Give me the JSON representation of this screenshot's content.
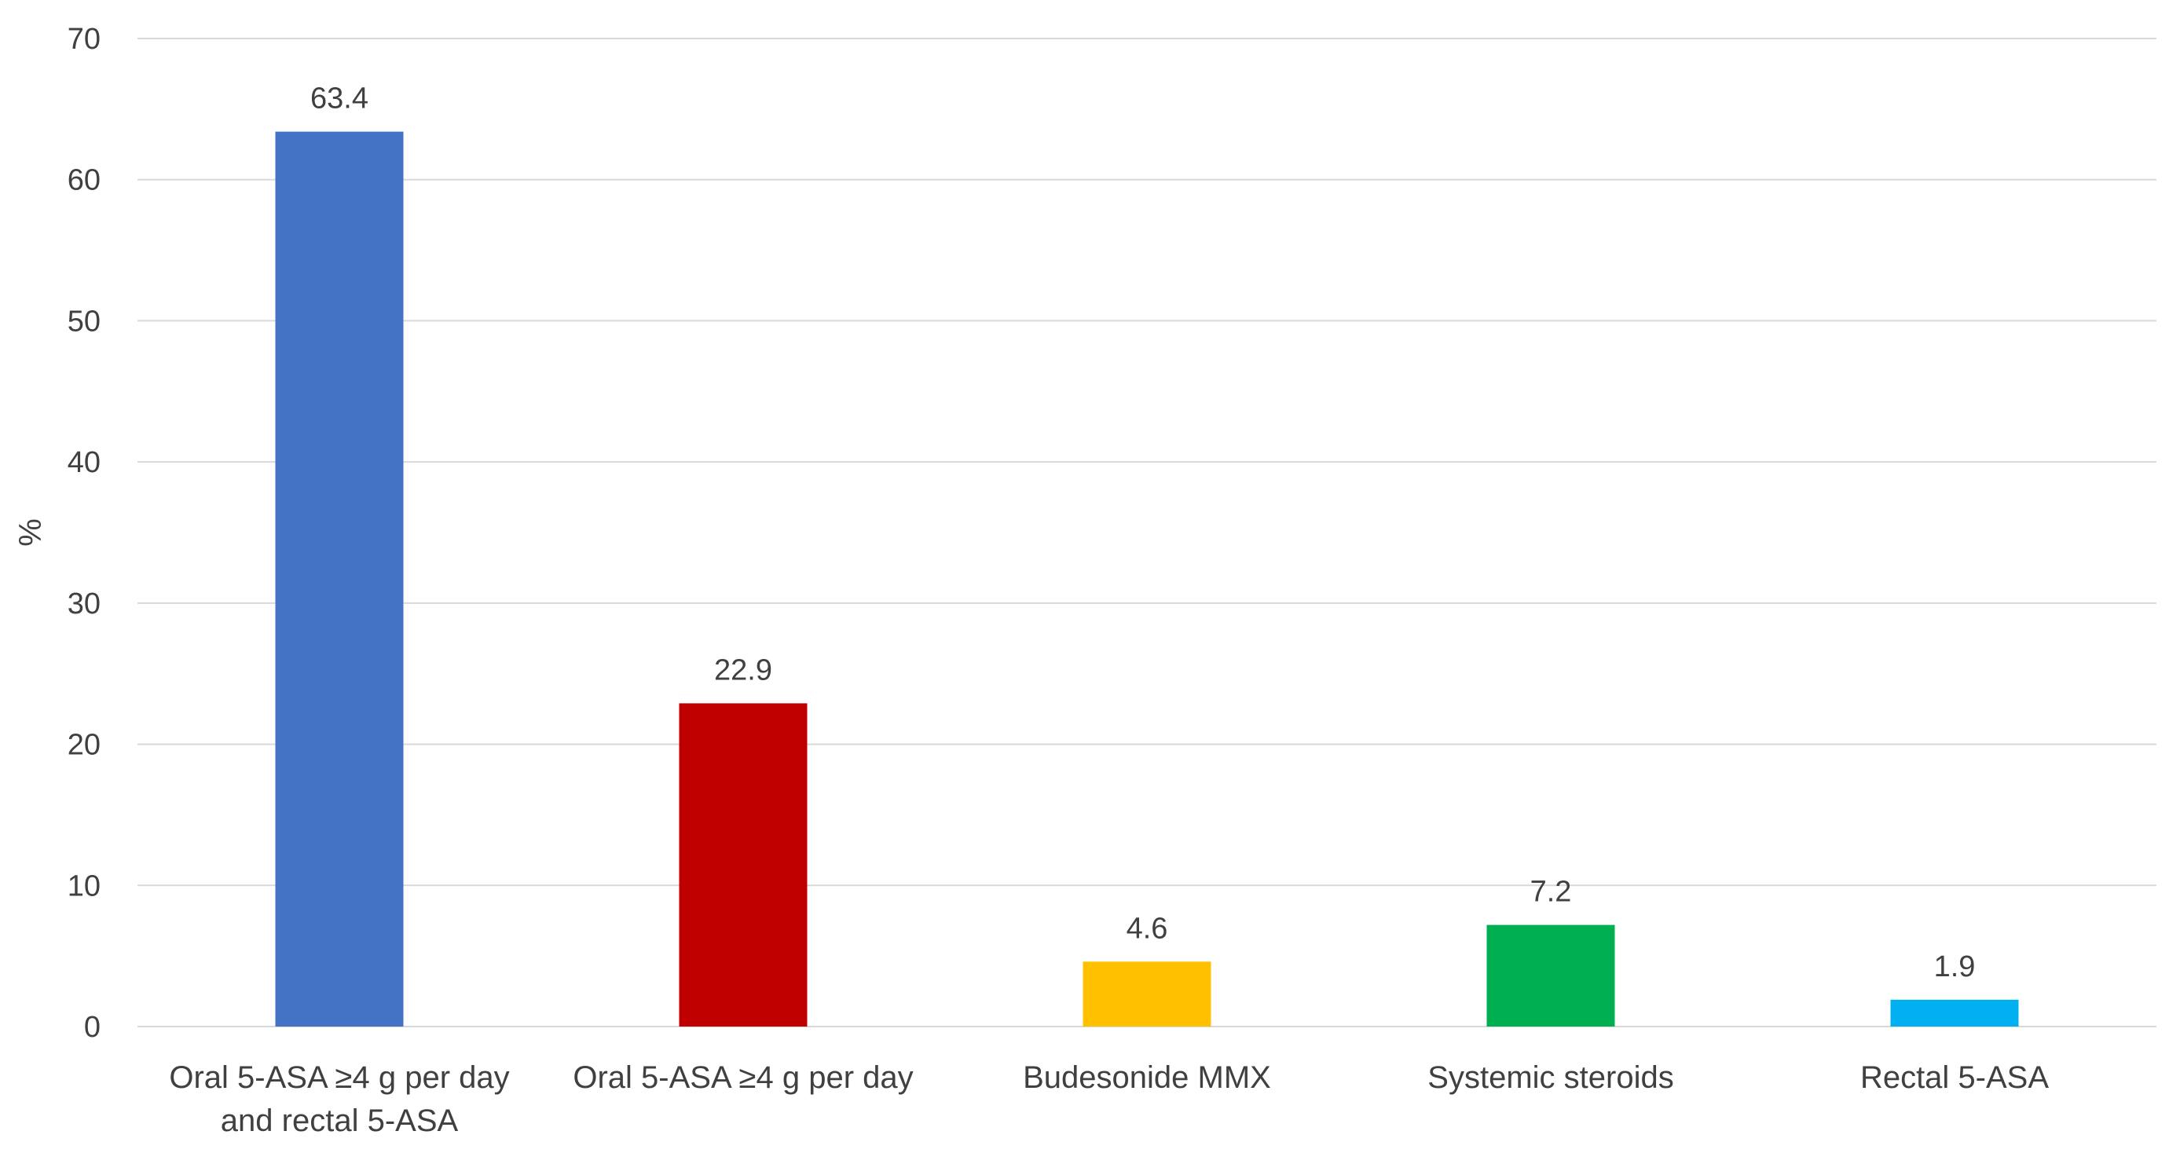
{
  "chart_data": {
    "type": "bar",
    "title": "",
    "xlabel": "",
    "ylabel": "%",
    "ylim": [
      0,
      70
    ],
    "yticks": [
      0,
      10,
      20,
      30,
      40,
      50,
      60,
      70
    ],
    "grid": true,
    "legend": "none",
    "categories": [
      [
        "Oral 5-ASA ≥4 g per day",
        "and rectal 5-ASA"
      ],
      [
        "Oral 5-ASA ≥4 g per day"
      ],
      [
        "Budesonide MMX"
      ],
      [
        "Systemic steroids"
      ],
      [
        "Rectal 5-ASA"
      ]
    ],
    "values": [
      63.4,
      22.9,
      4.6,
      7.2,
      1.9
    ],
    "value_labels": [
      "63.4",
      "22.9",
      "4.6",
      "7.2",
      "1.9"
    ],
    "colors": [
      "#4472C4",
      "#C00000",
      "#FFC000",
      "#00B050",
      "#00B0F0"
    ]
  }
}
